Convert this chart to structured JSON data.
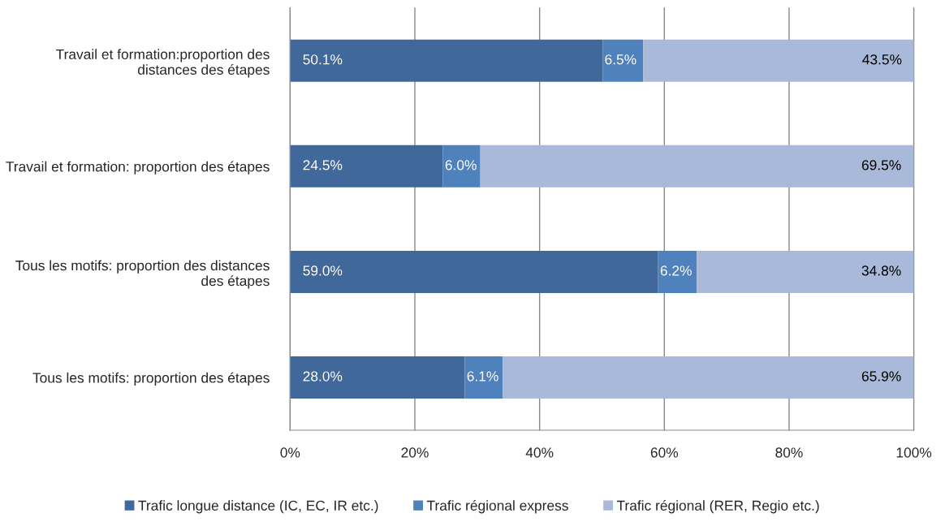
{
  "chart_data": {
    "type": "bar",
    "orientation": "horizontal",
    "stacked": true,
    "categories": [
      "Travail et formation:proportion des distances des étapes",
      "Travail et formation: proportion des étapes",
      "Tous les motifs: proportion des distances des étapes",
      "Tous les motifs: proportion des étapes"
    ],
    "series": [
      {
        "name": "Trafic longue distance (IC, EC, IR etc.)",
        "color": "#41689a",
        "values": [
          50.1,
          24.5,
          59.0,
          28.0
        ],
        "value_labels": [
          "50.1%",
          "24.5%",
          "59.0%",
          "28.0%"
        ]
      },
      {
        "name": "Trafic régional express",
        "color": "#4f81bd",
        "values": [
          6.5,
          6.0,
          6.2,
          6.1
        ],
        "value_labels": [
          "6.5%",
          "6.0%",
          "6.2%",
          "6.1%"
        ]
      },
      {
        "name": "Trafic régional (RER, Regio etc.)",
        "color": "#a9b9d9",
        "values": [
          43.5,
          69.5,
          34.8,
          65.9
        ],
        "value_labels": [
          "43.5%",
          "69.5%",
          "34.8%",
          "65.9%"
        ]
      }
    ],
    "xlim": [
      0,
      100
    ],
    "xticks": [
      {
        "value": 0,
        "label": "0%"
      },
      {
        "value": 20,
        "label": "20%"
      },
      {
        "value": 40,
        "label": "40%"
      },
      {
        "value": 60,
        "label": "60%"
      },
      {
        "value": 80,
        "label": "80%"
      },
      {
        "value": 100,
        "label": "100%"
      }
    ],
    "grid": "x",
    "legend": "bottom"
  }
}
